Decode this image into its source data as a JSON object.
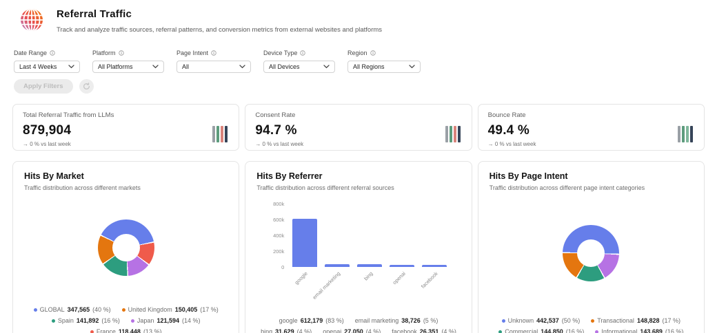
{
  "header": {
    "title": "Referral Traffic",
    "subtitle": "Track and analyze traffic sources, referral patterns, and conversion metrics from external websites and platforms",
    "icon": "globe-icon"
  },
  "filters": [
    {
      "label": "Date Range",
      "value": "Last 4 Weeks",
      "info_icon": "info-icon",
      "chevron_icon": "chevron-down-icon"
    },
    {
      "label": "Platform",
      "value": "All Platforms",
      "info_icon": "info-icon",
      "chevron_icon": "chevron-down-icon"
    },
    {
      "label": "Page Intent",
      "value": "All",
      "info_icon": "info-icon",
      "chevron_icon": "chevron-down-icon"
    },
    {
      "label": "Device Type",
      "value": "All Devices",
      "info_icon": "info-icon",
      "chevron_icon": "chevron-down-icon"
    },
    {
      "label": "Region",
      "value": "All Regions",
      "info_icon": "info-icon",
      "chevron_icon": "chevron-down-icon"
    }
  ],
  "actions": {
    "apply_label": "Apply Filters",
    "apply_disabled": true,
    "reset_icon": "refresh-icon"
  },
  "kpis": [
    {
      "label": "Total Referral Traffic from LLMs",
      "value": "879,904",
      "delta": "→ 0 % vs last week",
      "spark_colors": [
        "#9aa0a6",
        "#5d9c7d",
        "#d9837b",
        "#364458"
      ]
    },
    {
      "label": "Consent Rate",
      "value": "94.7 %",
      "delta": "→ 0 % vs last week",
      "spark_colors": [
        "#9aa0a6",
        "#5d9c7d",
        "#d9837b",
        "#364458"
      ]
    },
    {
      "label": "Bounce Rate",
      "value": "49.4 %",
      "delta": "→ 0 % vs last week",
      "spark_colors": [
        "#9aa0a6",
        "#5d9c7d",
        "#7fb79b",
        "#364458"
      ]
    }
  ],
  "chart_data": [
    {
      "type": "pie",
      "subtype": "donut",
      "title": "Hits By Market",
      "subtitle": "Traffic distribution across different markets",
      "labels": [
        "GLOBAL",
        "United Kingdom",
        "Spain",
        "Japan",
        "France"
      ],
      "values": [
        347565,
        150405,
        141892,
        121594,
        118448
      ],
      "display_values": [
        "347,565",
        "150,405",
        "141,892",
        "121,594",
        "118,448"
      ],
      "percents": [
        40,
        17,
        16,
        14,
        13
      ],
      "colors": [
        "#667eea",
        "#e4760f",
        "#2d9d7f",
        "#b672e4",
        "#ef5b4b"
      ],
      "legend_position": "bottom",
      "legend_dots": true,
      "start_angle_deg": 295,
      "draw_order": [
        0,
        4,
        3,
        2,
        1
      ]
    },
    {
      "type": "bar",
      "title": "Hits By Referrer",
      "subtitle": "Traffic distribution across different referral sources",
      "categories": [
        "google",
        "email marketing",
        "bing",
        "openai",
        "facebook"
      ],
      "values": [
        612179,
        38726,
        31629,
        27050,
        26351
      ],
      "display_values": [
        "612,179",
        "38,726",
        "31,629",
        "27,050",
        "26,351"
      ],
      "percents": [
        83,
        5,
        4,
        4,
        4
      ],
      "bar_color": "#667eea",
      "ylim": [
        0,
        800000
      ],
      "yticks": [
        {
          "label": "0",
          "value": 0
        },
        {
          "label": "200k",
          "value": 200000
        },
        {
          "label": "400k",
          "value": 400000
        },
        {
          "label": "600k",
          "value": 600000
        },
        {
          "label": "800k",
          "value": 800000
        }
      ],
      "grid": false,
      "legend_position": "bottom",
      "legend_dots": false
    },
    {
      "type": "pie",
      "subtype": "donut",
      "title": "Hits By Page Intent",
      "subtitle": "Traffic distribution across different page intent categories",
      "labels": [
        "Unknown",
        "Transactional",
        "Commercial",
        "Informational"
      ],
      "values": [
        442537,
        148828,
        144850,
        143689
      ],
      "display_values": [
        "442,537",
        "148,828",
        "144,850",
        "143,689"
      ],
      "percents": [
        50,
        17,
        16,
        16
      ],
      "colors": [
        "#667eea",
        "#e4760f",
        "#2d9d7f",
        "#b672e4"
      ],
      "legend_position": "bottom",
      "legend_dots": true,
      "start_angle_deg": 270,
      "draw_order": [
        0,
        3,
        2,
        1
      ]
    }
  ]
}
